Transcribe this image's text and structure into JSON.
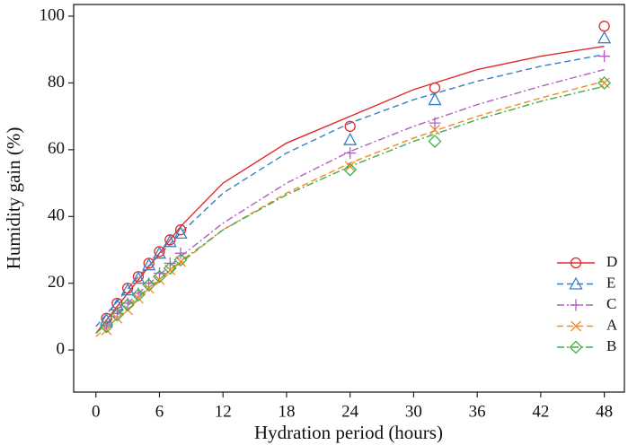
{
  "chart_data": {
    "type": "scatter",
    "x_label": "Hydration period (hours)",
    "y_label": "Humidity gain (%)",
    "x": [
      1,
      2,
      3,
      4,
      5,
      6,
      7,
      8,
      24,
      32,
      48
    ],
    "fit_x": [
      0,
      4,
      8,
      12,
      18,
      24,
      30,
      36,
      42,
      48
    ],
    "series": [
      {
        "name": "D",
        "color": "#e02a2a",
        "marker": "circle",
        "dash": "solid",
        "values": [
          9.5,
          14,
          18.5,
          22,
          26,
          29.5,
          33,
          36,
          67,
          78.5,
          97
        ],
        "fit": [
          5,
          21,
          37,
          50,
          62,
          70,
          78,
          84,
          88,
          91
        ]
      },
      {
        "name": "E",
        "color": "#3a7fc1",
        "marker": "triangle",
        "dash": "dashed",
        "values": [
          9,
          13.5,
          18,
          21.5,
          25.5,
          29,
          32.5,
          35,
          63,
          75,
          93.5
        ],
        "fit": [
          7,
          22,
          35,
          47,
          59,
          68,
          75,
          80.5,
          85,
          88.5
        ]
      },
      {
        "name": "C",
        "color": "#b15fc0",
        "marker": "plus",
        "dash": "dashdot",
        "values": [
          7,
          11,
          14,
          17,
          20,
          23,
          26,
          29,
          59,
          68,
          88
        ],
        "fit": [
          5,
          17,
          28,
          38,
          50,
          59.5,
          67,
          73.5,
          79,
          84
        ]
      },
      {
        "name": "A",
        "color": "#f08a24",
        "marker": "cross",
        "dash": "dashed",
        "values": [
          6,
          9.5,
          12,
          15.5,
          18.5,
          21,
          24,
          26.5,
          55,
          66,
          80
        ],
        "fit": [
          4,
          15,
          26,
          36,
          47,
          56,
          63.5,
          70,
          75.5,
          80.5
        ]
      },
      {
        "name": "B",
        "color": "#3fae49",
        "marker": "diamond",
        "dash": "dashdot",
        "values": [
          7,
          10.5,
          13.5,
          16.5,
          19.5,
          22,
          24.5,
          27,
          54,
          62.5,
          80
        ],
        "fit": [
          5,
          16,
          26.5,
          36,
          46.5,
          55,
          62.5,
          69,
          74.5,
          79
        ]
      }
    ],
    "xlim": [
      -2.1,
      49.9
    ],
    "ylim": [
      -12.6,
      103.5
    ],
    "xticks": [
      0,
      6,
      12,
      18,
      24,
      30,
      36,
      42,
      48
    ],
    "yticks": [
      0,
      20,
      40,
      60,
      80,
      100
    ],
    "grid": false,
    "legend": "lower right"
  }
}
